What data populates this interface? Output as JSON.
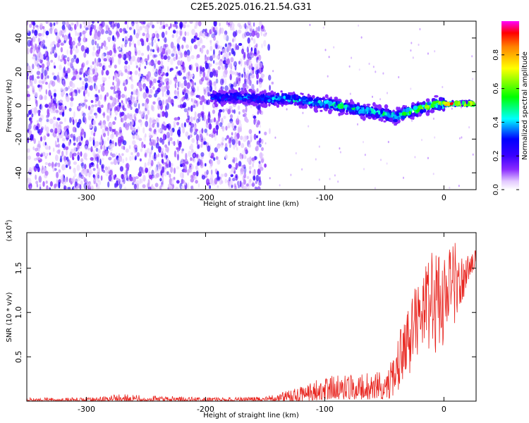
{
  "title": "C2E5.2025.016.21.54.G31",
  "colors": {
    "series": "#e8241e",
    "axis": "#000000",
    "background": "#ffffff"
  },
  "chart_data": [
    {
      "type": "heatmap",
      "title": "C2E5.2025.016.21.54.G31",
      "xlabel": "Height of straight line (km)",
      "ylabel": "Frequency (Hz)",
      "xlim": [
        -350,
        27
      ],
      "ylim": [
        -50,
        50
      ],
      "xticks": [
        -300,
        -200,
        -100,
        0
      ],
      "yticks": [
        -40,
        -20,
        0,
        20,
        40
      ],
      "colorbar": {
        "label": "Normalized spectral amplitude",
        "range": [
          0,
          1
        ],
        "ticks": [
          0.0,
          0.2,
          0.4,
          0.6,
          0.8
        ],
        "colormap": [
          "#ffffff",
          "#7b00ff",
          "#0000ff",
          "#00ffff",
          "#00ff00",
          "#ffff00",
          "#ff7f00",
          "#ff0000",
          "#ff00ff"
        ]
      },
      "band_center": [
        {
          "x": -195,
          "f": 5,
          "amp": 0.35
        },
        {
          "x": -170,
          "f": 5,
          "amp": 0.35
        },
        {
          "x": -150,
          "f": 4,
          "amp": 0.4
        },
        {
          "x": -130,
          "f": 4,
          "amp": 0.45
        },
        {
          "x": -110,
          "f": 2,
          "amp": 0.45
        },
        {
          "x": -90,
          "f": 0,
          "amp": 0.5
        },
        {
          "x": -70,
          "f": -3,
          "amp": 0.5
        },
        {
          "x": -50,
          "f": -5,
          "amp": 0.5
        },
        {
          "x": -40,
          "f": -7,
          "amp": 0.45
        },
        {
          "x": -35,
          "f": -5,
          "amp": 0.55
        },
        {
          "x": -20,
          "f": -2,
          "amp": 0.6
        },
        {
          "x": -5,
          "f": 1,
          "amp": 0.65
        },
        {
          "x": 5,
          "f": 1,
          "amp": 0.9
        },
        {
          "x": 25,
          "f": 1,
          "amp": 0.9
        }
      ]
    },
    {
      "type": "line",
      "xlabel": "Height of straight line (km)",
      "ylabel": "SNR (10 * v/v)",
      "y_multiplier": "(x10",
      "y_multiplier_exp": "4",
      "y_multiplier_close": ")",
      "xlim": [
        -350,
        27
      ],
      "ylim": [
        0,
        1.9
      ],
      "xticks": [
        -300,
        -200,
        -100,
        0
      ],
      "yticks": [
        0.5,
        1.0,
        1.5
      ],
      "series": [
        {
          "color": "#e8241e",
          "envelope": [
            {
              "x": -350,
              "lo": 0.0,
              "hi": 0.04
            },
            {
              "x": -300,
              "lo": 0.0,
              "hi": 0.04
            },
            {
              "x": -270,
              "lo": 0.0,
              "hi": 0.08
            },
            {
              "x": -200,
              "lo": 0.0,
              "hi": 0.04
            },
            {
              "x": -150,
              "lo": 0.0,
              "hi": 0.05
            },
            {
              "x": -130,
              "lo": 0.0,
              "hi": 0.12
            },
            {
              "x": -115,
              "lo": 0.0,
              "hi": 0.22
            },
            {
              "x": -100,
              "lo": 0.02,
              "hi": 0.28
            },
            {
              "x": -80,
              "lo": 0.02,
              "hi": 0.3
            },
            {
              "x": -60,
              "lo": 0.02,
              "hi": 0.35
            },
            {
              "x": -50,
              "lo": 0.02,
              "hi": 0.32
            },
            {
              "x": -40,
              "lo": 0.05,
              "hi": 0.6
            },
            {
              "x": -35,
              "lo": 0.2,
              "hi": 0.9
            },
            {
              "x": -30,
              "lo": 0.3,
              "hi": 1.1
            },
            {
              "x": -20,
              "lo": 0.4,
              "hi": 1.4
            },
            {
              "x": -10,
              "lo": 0.5,
              "hi": 1.85
            },
            {
              "x": 0,
              "lo": 0.6,
              "hi": 1.6
            },
            {
              "x": 10,
              "lo": 0.9,
              "hi": 1.85
            },
            {
              "x": 20,
              "lo": 1.3,
              "hi": 1.65
            },
            {
              "x": 27,
              "lo": 1.45,
              "hi": 1.72
            }
          ]
        }
      ]
    }
  ]
}
